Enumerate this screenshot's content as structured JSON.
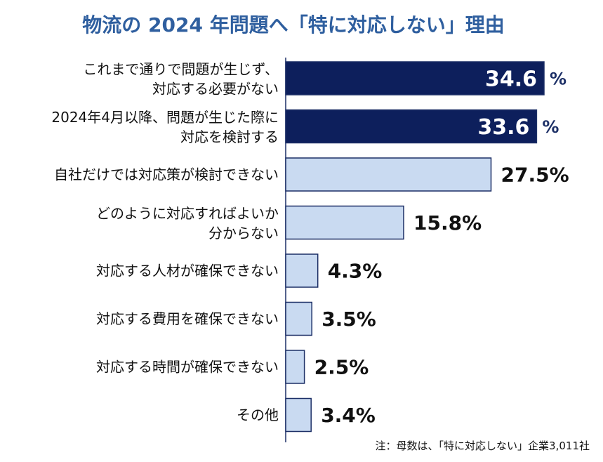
{
  "chart_data": {
    "type": "bar",
    "orientation": "horizontal",
    "title": "物流の 2024 年問題へ「特に対応しない」理由",
    "categories": [
      [
        "これまで通りで問題が生じず、",
        "対応する必要がない"
      ],
      [
        "2024年4月以降、問題が生じた際に",
        "対応を検討する"
      ],
      [
        "自社だけでは対応策が検討できない"
      ],
      [
        "どのように対応すればよいか",
        "分からない"
      ],
      [
        "対応する人材が確保できない"
      ],
      [
        "対応する費用を確保できない"
      ],
      [
        "対応する時間が確保できない"
      ],
      [
        "その他"
      ]
    ],
    "values": [
      34.6,
      33.6,
      27.5,
      15.8,
      4.3,
      3.5,
      2.5,
      3.4
    ],
    "value_labels": [
      "34.6",
      "33.6",
      "27.5%",
      "15.8%",
      "4.3%",
      "3.5%",
      "2.5%",
      "3.4%"
    ],
    "unit_suffix": "%",
    "highlight_count": 2,
    "xlim": [
      0,
      36
    ],
    "grid": false,
    "colors": {
      "highlight": "#0d1f5c",
      "normal": "#c9daf1",
      "border": "#1c2f66",
      "title": "#2f5f9f",
      "highlight_label": "#ffffff",
      "unit": "#1c2f66",
      "text": "#111111"
    },
    "note": "注：母数は、「特に対応しない」企業3,011社"
  }
}
